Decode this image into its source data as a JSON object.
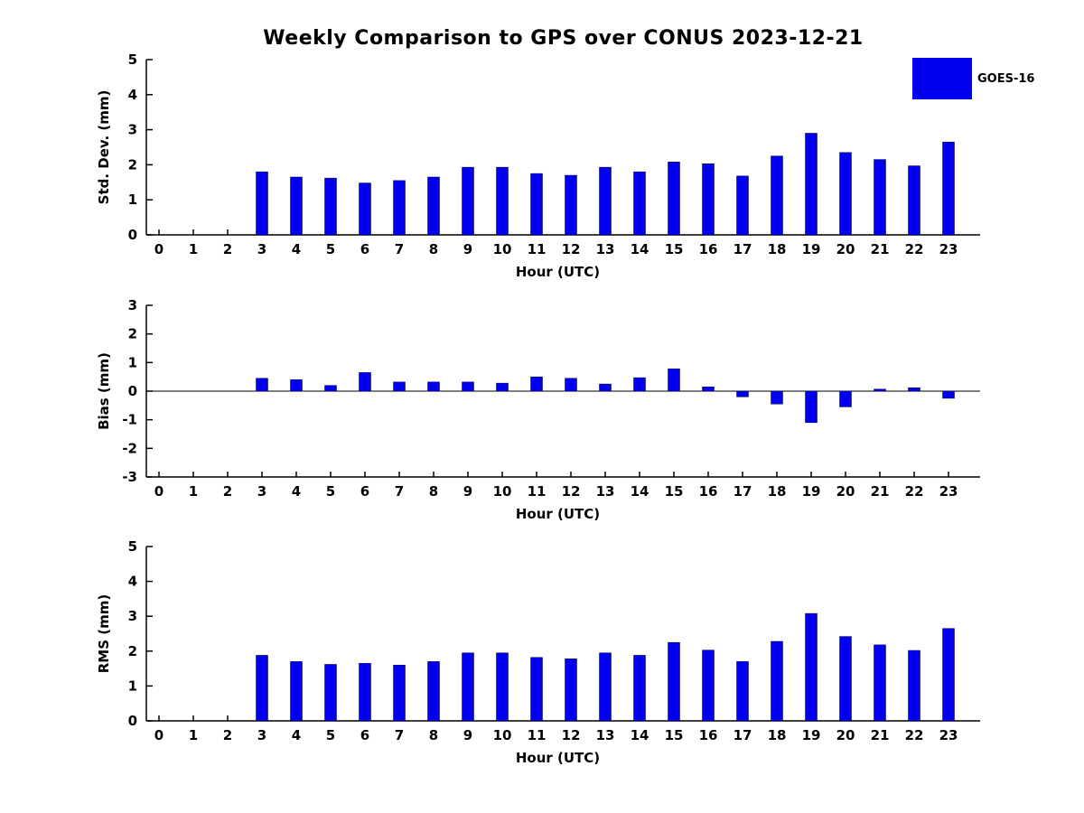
{
  "title": "Weekly Comparison to GPS over CONUS 2023-12-21",
  "legend": {
    "label": "GOES-16",
    "color": "#0000ee"
  },
  "bar_color": "#0000ee",
  "chart_data": [
    {
      "type": "bar",
      "title": "Weekly Comparison to GPS over CONUS 2023-12-21",
      "ylabel": "Std. Dev. (mm)",
      "xlabel": "Hour (UTC)",
      "ylim": [
        0,
        5
      ],
      "yticks": [
        0,
        1,
        2,
        3,
        4,
        5
      ],
      "grid": false,
      "legend_position": "top-right",
      "series_name": "GOES-16",
      "categories": [
        "0",
        "1",
        "2",
        "3",
        "4",
        "5",
        "6",
        "7",
        "8",
        "9",
        "10",
        "11",
        "12",
        "13",
        "14",
        "15",
        "16",
        "17",
        "18",
        "19",
        "20",
        "21",
        "22",
        "23"
      ],
      "values": [
        null,
        null,
        null,
        1.8,
        1.65,
        1.62,
        1.48,
        1.55,
        1.65,
        1.93,
        1.93,
        1.75,
        1.7,
        1.93,
        1.8,
        2.08,
        2.03,
        1.68,
        2.25,
        2.9,
        2.35,
        2.15,
        1.97,
        2.65
      ]
    },
    {
      "type": "bar",
      "title": "",
      "ylabel": "Bias (mm)",
      "xlabel": "Hour (UTC)",
      "ylim": [
        -3,
        3
      ],
      "yticks": [
        -3,
        -2,
        -1,
        0,
        1,
        2,
        3
      ],
      "grid": false,
      "series_name": "GOES-16",
      "categories": [
        "0",
        "1",
        "2",
        "3",
        "4",
        "5",
        "6",
        "7",
        "8",
        "9",
        "10",
        "11",
        "12",
        "13",
        "14",
        "15",
        "16",
        "17",
        "18",
        "19",
        "20",
        "21",
        "22",
        "23"
      ],
      "values": [
        null,
        null,
        null,
        0.45,
        0.4,
        0.2,
        0.65,
        0.32,
        0.32,
        0.32,
        0.28,
        0.5,
        0.45,
        0.25,
        0.47,
        0.78,
        0.15,
        -0.2,
        -0.45,
        -1.1,
        -0.55,
        0.07,
        0.12,
        -0.25
      ]
    },
    {
      "type": "bar",
      "title": "",
      "ylabel": "RMS (mm)",
      "xlabel": "Hour (UTC)",
      "ylim": [
        0,
        5
      ],
      "yticks": [
        0,
        1,
        2,
        3,
        4,
        5
      ],
      "grid": false,
      "series_name": "GOES-16",
      "categories": [
        "0",
        "1",
        "2",
        "3",
        "4",
        "5",
        "6",
        "7",
        "8",
        "9",
        "10",
        "11",
        "12",
        "13",
        "14",
        "15",
        "16",
        "17",
        "18",
        "19",
        "20",
        "21",
        "22",
        "23"
      ],
      "values": [
        null,
        null,
        null,
        1.88,
        1.7,
        1.62,
        1.65,
        1.6,
        1.7,
        1.95,
        1.95,
        1.82,
        1.78,
        1.95,
        1.88,
        2.25,
        2.03,
        1.7,
        2.28,
        3.08,
        2.42,
        2.18,
        2.02,
        2.65
      ]
    }
  ]
}
